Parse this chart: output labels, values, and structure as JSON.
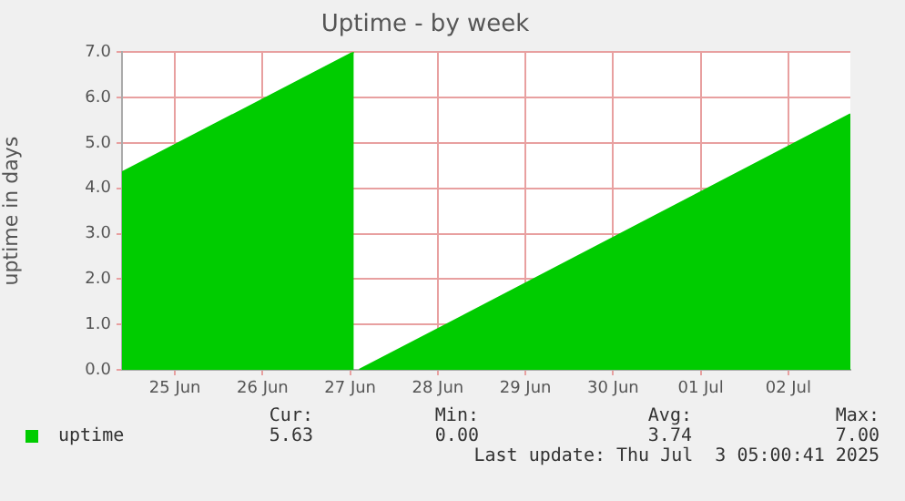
{
  "chart_data": {
    "type": "area",
    "title": "Uptime - by week",
    "ylabel": "uptime in days",
    "x": [
      "2025-06-24T21:30",
      "2025-06-27T13:00",
      "2025-06-27T14:00",
      "2025-06-27T14:30",
      "2025-07-03T05:00"
    ],
    "series": [
      {
        "name": "uptime",
        "color": "#00cc00",
        "values": [
          4.35,
          7.0,
          null,
          0.0,
          5.63
        ]
      }
    ],
    "xlim": [
      "2025-06-24T21:30",
      "2025-07-03T05:00"
    ],
    "xticks": [
      {
        "value": "2025-06-25T12:00",
        "label": "25 Jun"
      },
      {
        "value": "2025-06-26T12:00",
        "label": "26 Jun"
      },
      {
        "value": "2025-06-27T12:00",
        "label": "27 Jun"
      },
      {
        "value": "2025-06-28T12:00",
        "label": "28 Jun"
      },
      {
        "value": "2025-06-29T12:00",
        "label": "29 Jun"
      },
      {
        "value": "2025-06-30T12:00",
        "label": "30 Jun"
      },
      {
        "value": "2025-07-01T12:00",
        "label": "01 Jul"
      },
      {
        "value": "2025-07-02T12:00",
        "label": "02 Jul"
      }
    ],
    "ylim": [
      0,
      7
    ],
    "yticks": [
      {
        "value": 0,
        "label": "0.0"
      },
      {
        "value": 1,
        "label": "1.0"
      },
      {
        "value": 2,
        "label": "2.0"
      },
      {
        "value": 3,
        "label": "3.0"
      },
      {
        "value": 4,
        "label": "4.0"
      },
      {
        "value": 5,
        "label": "5.0"
      },
      {
        "value": 6,
        "label": "6.0"
      },
      {
        "value": 7,
        "label": "7.0"
      }
    ],
    "grid": true,
    "legend": "bottom left",
    "annotations": [
      "Cur:",
      "5.63",
      "Min:",
      "0.00",
      "Avg:",
      "3.74",
      "Max:",
      "7.00",
      "Last update: Thu Jul  3 05:00:41 2025"
    ]
  }
}
